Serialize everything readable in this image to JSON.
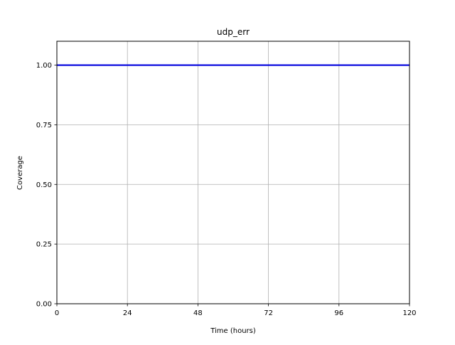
{
  "chart_data": {
    "type": "line",
    "title": "udp_err",
    "xlabel": "Time (hours)",
    "ylabel": "Coverage",
    "xlim": [
      0,
      120
    ],
    "ylim": [
      0,
      1.1
    ],
    "xticks": [
      0,
      24,
      48,
      72,
      96,
      120
    ],
    "xtick_labels": [
      "0",
      "24",
      "48",
      "72",
      "96",
      "120"
    ],
    "yticks": [
      0,
      0.25,
      0.5,
      0.75,
      1.0
    ],
    "ytick_labels": [
      "0.00",
      "0.25",
      "0.50",
      "0.75",
      "1.00"
    ],
    "grid": true,
    "series": [
      {
        "color": "#0000dd",
        "x": [
          0,
          120
        ],
        "y": [
          1.0,
          1.0
        ]
      }
    ]
  }
}
